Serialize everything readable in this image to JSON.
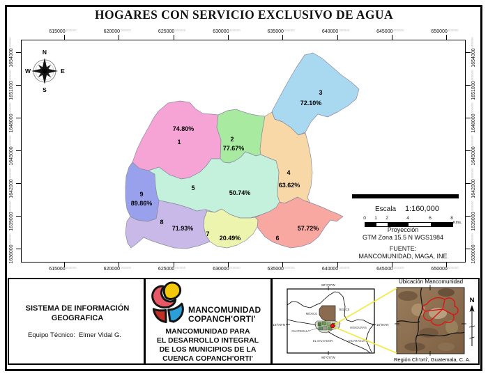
{
  "title": "HOGARES CON SERVICIO EXCLUSIVO DE AGUA",
  "axes": {
    "x_ticks": [
      "615000",
      "620000",
      "625000",
      "630000",
      "635000",
      "640000",
      "645000",
      "650000"
    ],
    "y_ticks": [
      "1654000",
      "1651000",
      "1648000",
      "1645000",
      "1642000",
      "1639000",
      "1636000"
    ],
    "tick_suffix": "000000"
  },
  "compass": {
    "n": "N",
    "e": "E",
    "s": "S",
    "w": "W"
  },
  "regions": [
    {
      "id": "1",
      "value": "74.80%",
      "color": "#F6A3D5"
    },
    {
      "id": "2",
      "value": "77.67%",
      "color": "#A8EBA0"
    },
    {
      "id": "3",
      "value": "72.10%",
      "color": "#A9D8F1"
    },
    {
      "id": "4",
      "value": "63.62%",
      "color": "#F8D8A7"
    },
    {
      "id": "5",
      "value": "50.74%",
      "color": "#C3F1DB"
    },
    {
      "id": "6",
      "value": "57.72%",
      "color": "#F8A8A1"
    },
    {
      "id": "7",
      "value": "20.49%",
      "color": "#EDF4AD"
    },
    {
      "id": "8",
      "value": "71.93%",
      "color": "#C8B9E9"
    },
    {
      "id": "9",
      "value": "89.86%",
      "color": "#9AA1EC"
    }
  ],
  "scale": {
    "label": "Escala",
    "ratio": "1:160,000",
    "bar_ticks": [
      "0",
      "1",
      "2",
      "4",
      "6",
      "8"
    ],
    "unit": "Kms."
  },
  "projection": {
    "line1": "Proyección",
    "line2": "GTM Zona 15.5 N WGS1984"
  },
  "source": {
    "line1": "FUENTE:",
    "line2": "MANCOMUNIDAD, MAGA, INE"
  },
  "footer": {
    "sig": {
      "title_line1": "SISTEMA DE INFORMACIÓN",
      "title_line2": "GEOGRAFICA",
      "team_label": "Equipo Técnico:",
      "team_value": "Elmer Vidal G."
    },
    "org": {
      "wordmark_line1": "MANCOMUNIDAD",
      "wordmark_line2": "COPANCH'ORTI'",
      "desc_line1": "MANCOMUNIDAD PARA",
      "desc_line2": "EL DESARROLLO INTEGRAL",
      "desc_line3": "DE LOS MUNICIPIOS DE LA",
      "desc_line4": "CUENCA COPANCH'ORTI'"
    },
    "ca_inset": {
      "lon_top": "90°0'0\"W",
      "lon_bottom": "90°0'0\"W",
      "lat_left": "15°0'0\"N",
      "lat_right": "15°0'0\"N",
      "countries": [
        "MÉXICO",
        "BELICE",
        "GUATEMALA",
        "HONDURAS",
        "EL SALVADOR",
        "NICARAGUA"
      ]
    },
    "ubicacion": {
      "title": "Ubicación Mancomunidad",
      "north": "N",
      "caption": "Región Ch'orti', Guatemala, C. A."
    }
  }
}
